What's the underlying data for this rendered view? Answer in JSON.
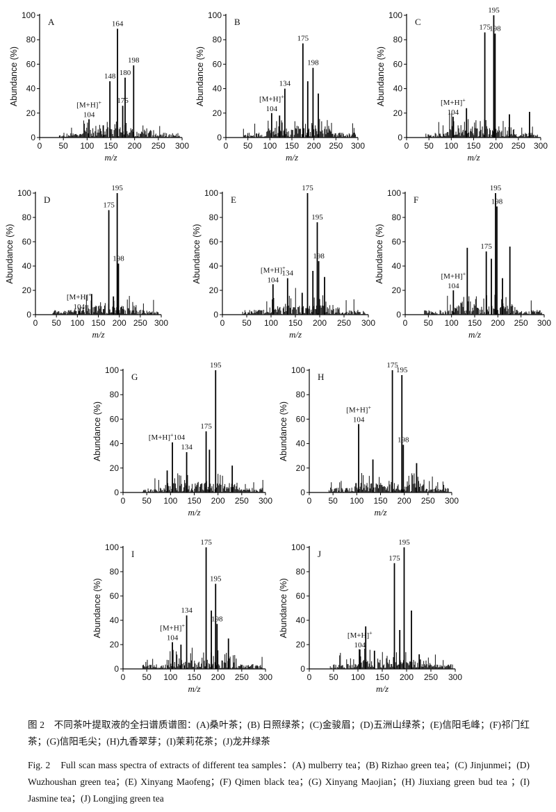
{
  "axis": {
    "xlabel": "m/z",
    "ylabel": "Abundance (%)",
    "xticks": [
      "0",
      "50",
      "100",
      "150",
      "200",
      "250",
      "300"
    ],
    "yticks": [
      "0",
      "20",
      "40",
      "60",
      "80",
      "100"
    ]
  },
  "chart_data": [
    {
      "type": "bar",
      "panel": "A",
      "xlim": [
        0,
        300
      ],
      "ylim": [
        0,
        100
      ],
      "peaks": [
        {
          "x": 104,
          "y": 15
        },
        {
          "x": 134,
          "y": 10
        },
        {
          "x": 148,
          "y": 46
        },
        {
          "x": 164,
          "y": 89
        },
        {
          "x": 175,
          "y": 26
        },
        {
          "x": 180,
          "y": 49
        },
        {
          "x": 198,
          "y": 59
        }
      ],
      "annotations": [
        {
          "label": "[M+H]+",
          "x": 104
        },
        {
          "label": "104",
          "x": 104
        },
        {
          "label": "148",
          "x": 148
        },
        {
          "label": "164",
          "x": 164
        },
        {
          "label": "175",
          "x": 175
        },
        {
          "label": "180",
          "x": 180
        },
        {
          "label": "198",
          "x": 198
        }
      ]
    },
    {
      "type": "bar",
      "panel": "B",
      "xlim": [
        0,
        300
      ],
      "ylim": [
        0,
        100
      ],
      "peaks": [
        {
          "x": 104,
          "y": 20
        },
        {
          "x": 134,
          "y": 40
        },
        {
          "x": 175,
          "y": 77
        },
        {
          "x": 198,
          "y": 57
        },
        {
          "x": 186,
          "y": 46
        },
        {
          "x": 210,
          "y": 36
        },
        {
          "x": 122,
          "y": 18
        }
      ],
      "annotations": [
        {
          "label": "[M+H]+",
          "x": 104
        },
        {
          "label": "104",
          "x": 104
        },
        {
          "label": "134",
          "x": 134
        },
        {
          "label": "175",
          "x": 175
        },
        {
          "label": "198",
          "x": 198
        }
      ]
    },
    {
      "type": "bar",
      "panel": "C",
      "xlim": [
        0,
        300
      ],
      "ylim": [
        0,
        100
      ],
      "peaks": [
        {
          "x": 104,
          "y": 17
        },
        {
          "x": 134,
          "y": 24
        },
        {
          "x": 175,
          "y": 86
        },
        {
          "x": 195,
          "y": 100
        },
        {
          "x": 198,
          "y": 85
        },
        {
          "x": 275,
          "y": 21
        },
        {
          "x": 230,
          "y": 19
        }
      ],
      "annotations": [
        {
          "label": "[M+H]+",
          "x": 104
        },
        {
          "label": "104",
          "x": 104
        },
        {
          "label": "175",
          "x": 175
        },
        {
          "label": "195",
          "x": 195
        },
        {
          "label": "198",
          "x": 198
        }
      ]
    },
    {
      "type": "bar",
      "panel": "D",
      "xlim": [
        0,
        300
      ],
      "ylim": [
        0,
        100
      ],
      "peaks": [
        {
          "x": 104,
          "y": 3
        },
        {
          "x": 134,
          "y": 17
        },
        {
          "x": 175,
          "y": 86
        },
        {
          "x": 195,
          "y": 100
        },
        {
          "x": 198,
          "y": 42
        },
        {
          "x": 186,
          "y": 15
        }
      ],
      "annotations": [
        {
          "label": "[M+H]+",
          "x": 104
        },
        {
          "label": "104",
          "x": 104
        },
        {
          "label": "175",
          "x": 175
        },
        {
          "label": "195",
          "x": 195
        },
        {
          "label": "198",
          "x": 198
        }
      ]
    },
    {
      "type": "bar",
      "panel": "E",
      "xlim": [
        0,
        300
      ],
      "ylim": [
        0,
        100
      ],
      "peaks": [
        {
          "x": 104,
          "y": 25
        },
        {
          "x": 134,
          "y": 30
        },
        {
          "x": 175,
          "y": 100
        },
        {
          "x": 195,
          "y": 76
        },
        {
          "x": 198,
          "y": 44
        },
        {
          "x": 186,
          "y": 36
        },
        {
          "x": 210,
          "y": 31
        },
        {
          "x": 164,
          "y": 18
        }
      ],
      "annotations": [
        {
          "label": "[M+H]+",
          "x": 104
        },
        {
          "label": "104",
          "x": 104
        },
        {
          "label": "134",
          "x": 134
        },
        {
          "label": "175",
          "x": 175
        },
        {
          "label": "195",
          "x": 195
        },
        {
          "label": "198",
          "x": 198
        }
      ]
    },
    {
      "type": "bar",
      "panel": "F",
      "xlim": [
        0,
        300
      ],
      "ylim": [
        0,
        100
      ],
      "peaks": [
        {
          "x": 104,
          "y": 20
        },
        {
          "x": 134,
          "y": 55
        },
        {
          "x": 175,
          "y": 52
        },
        {
          "x": 195,
          "y": 100
        },
        {
          "x": 198,
          "y": 89
        },
        {
          "x": 186,
          "y": 46
        },
        {
          "x": 226,
          "y": 56
        },
        {
          "x": 210,
          "y": 30
        }
      ],
      "annotations": [
        {
          "label": "[M+H]+",
          "x": 104
        },
        {
          "label": "104",
          "x": 104
        },
        {
          "label": "175",
          "x": 175
        },
        {
          "label": "195",
          "x": 195
        },
        {
          "label": "198",
          "x": 198
        }
      ]
    },
    {
      "type": "bar",
      "panel": "G",
      "xlim": [
        0,
        300
      ],
      "ylim": [
        0,
        100
      ],
      "peaks": [
        {
          "x": 104,
          "y": 41
        },
        {
          "x": 134,
          "y": 33
        },
        {
          "x": 175,
          "y": 50
        },
        {
          "x": 195,
          "y": 100
        },
        {
          "x": 182,
          "y": 35
        },
        {
          "x": 230,
          "y": 22
        },
        {
          "x": 93,
          "y": 18
        }
      ],
      "annotations": [
        {
          "label": "[M+H]+104",
          "x": 104
        },
        {
          "label": "134",
          "x": 134
        },
        {
          "label": "175",
          "x": 175
        },
        {
          "label": "195",
          "x": 195
        }
      ]
    },
    {
      "type": "bar",
      "panel": "H",
      "xlim": [
        0,
        300
      ],
      "ylim": [
        0,
        100
      ],
      "peaks": [
        {
          "x": 104,
          "y": 56
        },
        {
          "x": 134,
          "y": 27
        },
        {
          "x": 175,
          "y": 100
        },
        {
          "x": 195,
          "y": 96
        },
        {
          "x": 198,
          "y": 39
        },
        {
          "x": 226,
          "y": 24
        }
      ],
      "annotations": [
        {
          "label": "[M+H]+",
          "x": 104
        },
        {
          "label": "104",
          "x": 104
        },
        {
          "label": "175",
          "x": 175
        },
        {
          "label": "195",
          "x": 195
        },
        {
          "label": "198",
          "x": 198
        }
      ]
    },
    {
      "type": "bar",
      "panel": "I",
      "xlim": [
        0,
        300
      ],
      "ylim": [
        0,
        100
      ],
      "peaks": [
        {
          "x": 104,
          "y": 22
        },
        {
          "x": 134,
          "y": 44
        },
        {
          "x": 175,
          "y": 100
        },
        {
          "x": 186,
          "y": 48
        },
        {
          "x": 195,
          "y": 70
        },
        {
          "x": 198,
          "y": 37
        },
        {
          "x": 222,
          "y": 25
        },
        {
          "x": 122,
          "y": 20
        }
      ],
      "annotations": [
        {
          "label": "[M+H]+",
          "x": 104
        },
        {
          "label": "104",
          "x": 104
        },
        {
          "label": "134",
          "x": 134
        },
        {
          "label": "175",
          "x": 175
        },
        {
          "label": "195",
          "x": 195
        },
        {
          "label": "198",
          "x": 198
        }
      ]
    },
    {
      "type": "bar",
      "panel": "J",
      "xlim": [
        0,
        300
      ],
      "ylim": [
        0,
        100
      ],
      "peaks": [
        {
          "x": 104,
          "y": 16
        },
        {
          "x": 116,
          "y": 35
        },
        {
          "x": 134,
          "y": 15
        },
        {
          "x": 175,
          "y": 87
        },
        {
          "x": 186,
          "y": 32
        },
        {
          "x": 195,
          "y": 100
        },
        {
          "x": 210,
          "y": 48
        },
        {
          "x": 226,
          "y": 12
        }
      ],
      "annotations": [
        {
          "label": "[M+H]+",
          "x": 104
        },
        {
          "label": "104",
          "x": 104
        },
        {
          "label": "175",
          "x": 175
        },
        {
          "label": "195",
          "x": 195
        }
      ]
    }
  ],
  "caption": {
    "cn": "图 2　不同茶叶提取液的全扫谱质谱图：(A)桑叶茶；(B) 日照绿茶；(C)金骏眉；(D)五洲山绿茶；(E)信阳毛峰；(F)祁门红茶；(G)信阳毛尖；(H)九香翠芽；(I)茉莉花茶；(J)龙井绿茶",
    "en": "Fig. 2　Full scan mass spectra of extracts of different tea samples：(A) mulberry tea；(B) Rizhao green tea；(C) Jinjunmei；(D) Wuzhoushan green tea；(E) Xinyang Maofeng；(F) Qimen black tea；(G) Xinyang Maojian；(H) Jiuxiang green bud tea ；(I) Jasmine tea；(J) Longjing green tea"
  }
}
